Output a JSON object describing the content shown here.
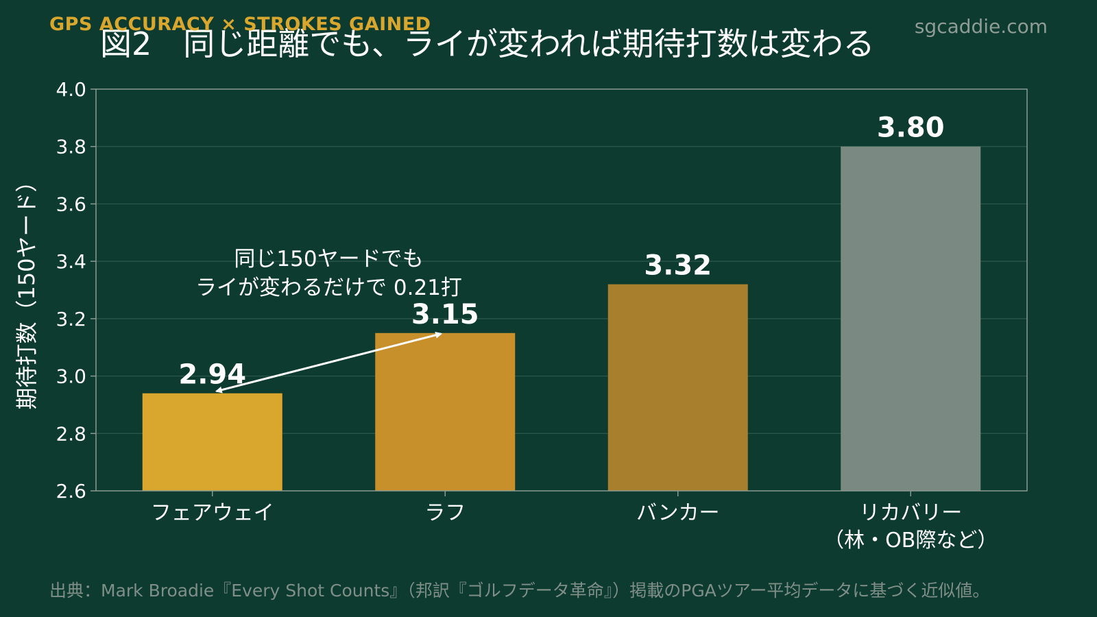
{
  "header": {
    "eyebrow": "GPS ACCURACY × STROKES GAINED",
    "brand": "sgcaddie.com"
  },
  "footer": {
    "source": "出典：Mark Broadie『Every Shot Counts』（邦訳『ゴルフデータ革命』）掲載のPGAツアー平均データに基づく近似値。"
  },
  "colors": {
    "background": "#0e3b2f",
    "eyebrow": "#d9a62e"
  },
  "chart_data": {
    "type": "bar",
    "title": "図2　同じ距離でも、ライが変われば期待打数は変わる",
    "ylabel": "期待打数（150ヤード）",
    "xlabel": "",
    "ylim": [
      2.6,
      4.0
    ],
    "yticks": [
      "2.6",
      "2.8",
      "3.0",
      "3.2",
      "3.4",
      "3.6",
      "3.8",
      "4.0"
    ],
    "grid": true,
    "categories": [
      {
        "label": "フェアウェイ",
        "label2": ""
      },
      {
        "label": "ラフ",
        "label2": ""
      },
      {
        "label": "バンカー",
        "label2": ""
      },
      {
        "label": "リカバリー",
        "label2": "（林・OB際など）"
      }
    ],
    "values": [
      2.94,
      3.15,
      3.32,
      3.8
    ],
    "value_labels": [
      "2.94",
      "3.15",
      "3.32",
      "3.80"
    ],
    "bar_colors": [
      "#d9a62e",
      "#c8902a",
      "#a87f2c",
      "#7a8a82"
    ],
    "annotation": {
      "lines": [
        "同じ150ヤードでも",
        "ライが変わるだけで 0.21打"
      ],
      "from_category": 0,
      "to_category": 1
    }
  }
}
